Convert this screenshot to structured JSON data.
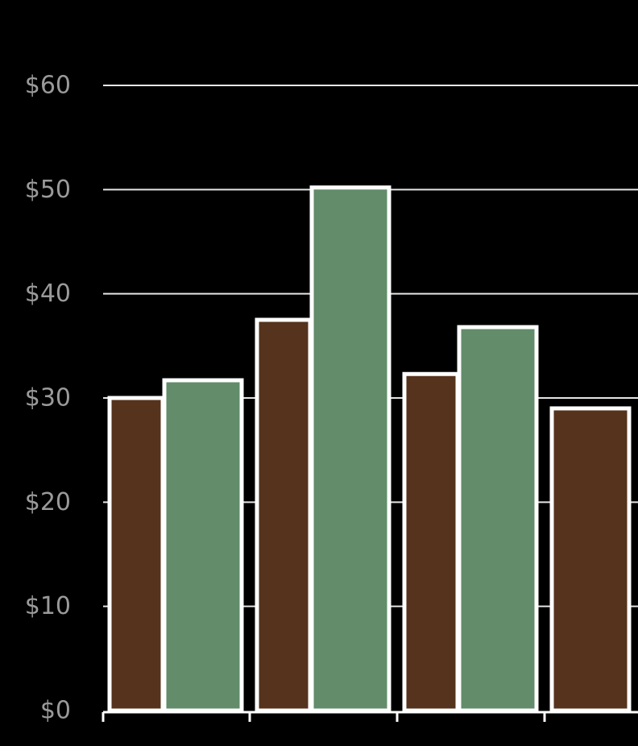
{
  "chart_data": {
    "type": "bar",
    "title": "",
    "xlabel": "",
    "ylabel": "",
    "ylim": [
      0,
      60
    ],
    "y_ticks": [
      {
        "value": 0,
        "label": "$0"
      },
      {
        "value": 10,
        "label": "$10"
      },
      {
        "value": 20,
        "label": "$20"
      },
      {
        "value": 30,
        "label": "$30"
      },
      {
        "value": 40,
        "label": "$40"
      },
      {
        "value": 50,
        "label": "$50"
      },
      {
        "value": 60,
        "label": "$60"
      }
    ],
    "grid": true,
    "categories": [
      "",
      "",
      "",
      ""
    ],
    "series": [
      {
        "color": "#55331c",
        "values": [
          30,
          37.5,
          32.3,
          29
        ]
      },
      {
        "color": "#628c6a",
        "values": [
          31.7,
          50.2,
          36.8,
          null
        ]
      }
    ],
    "bar_outline_color": "#ffffff",
    "grid_color": "#e6e6e6",
    "tick_label_color": "#9a9a9a"
  }
}
